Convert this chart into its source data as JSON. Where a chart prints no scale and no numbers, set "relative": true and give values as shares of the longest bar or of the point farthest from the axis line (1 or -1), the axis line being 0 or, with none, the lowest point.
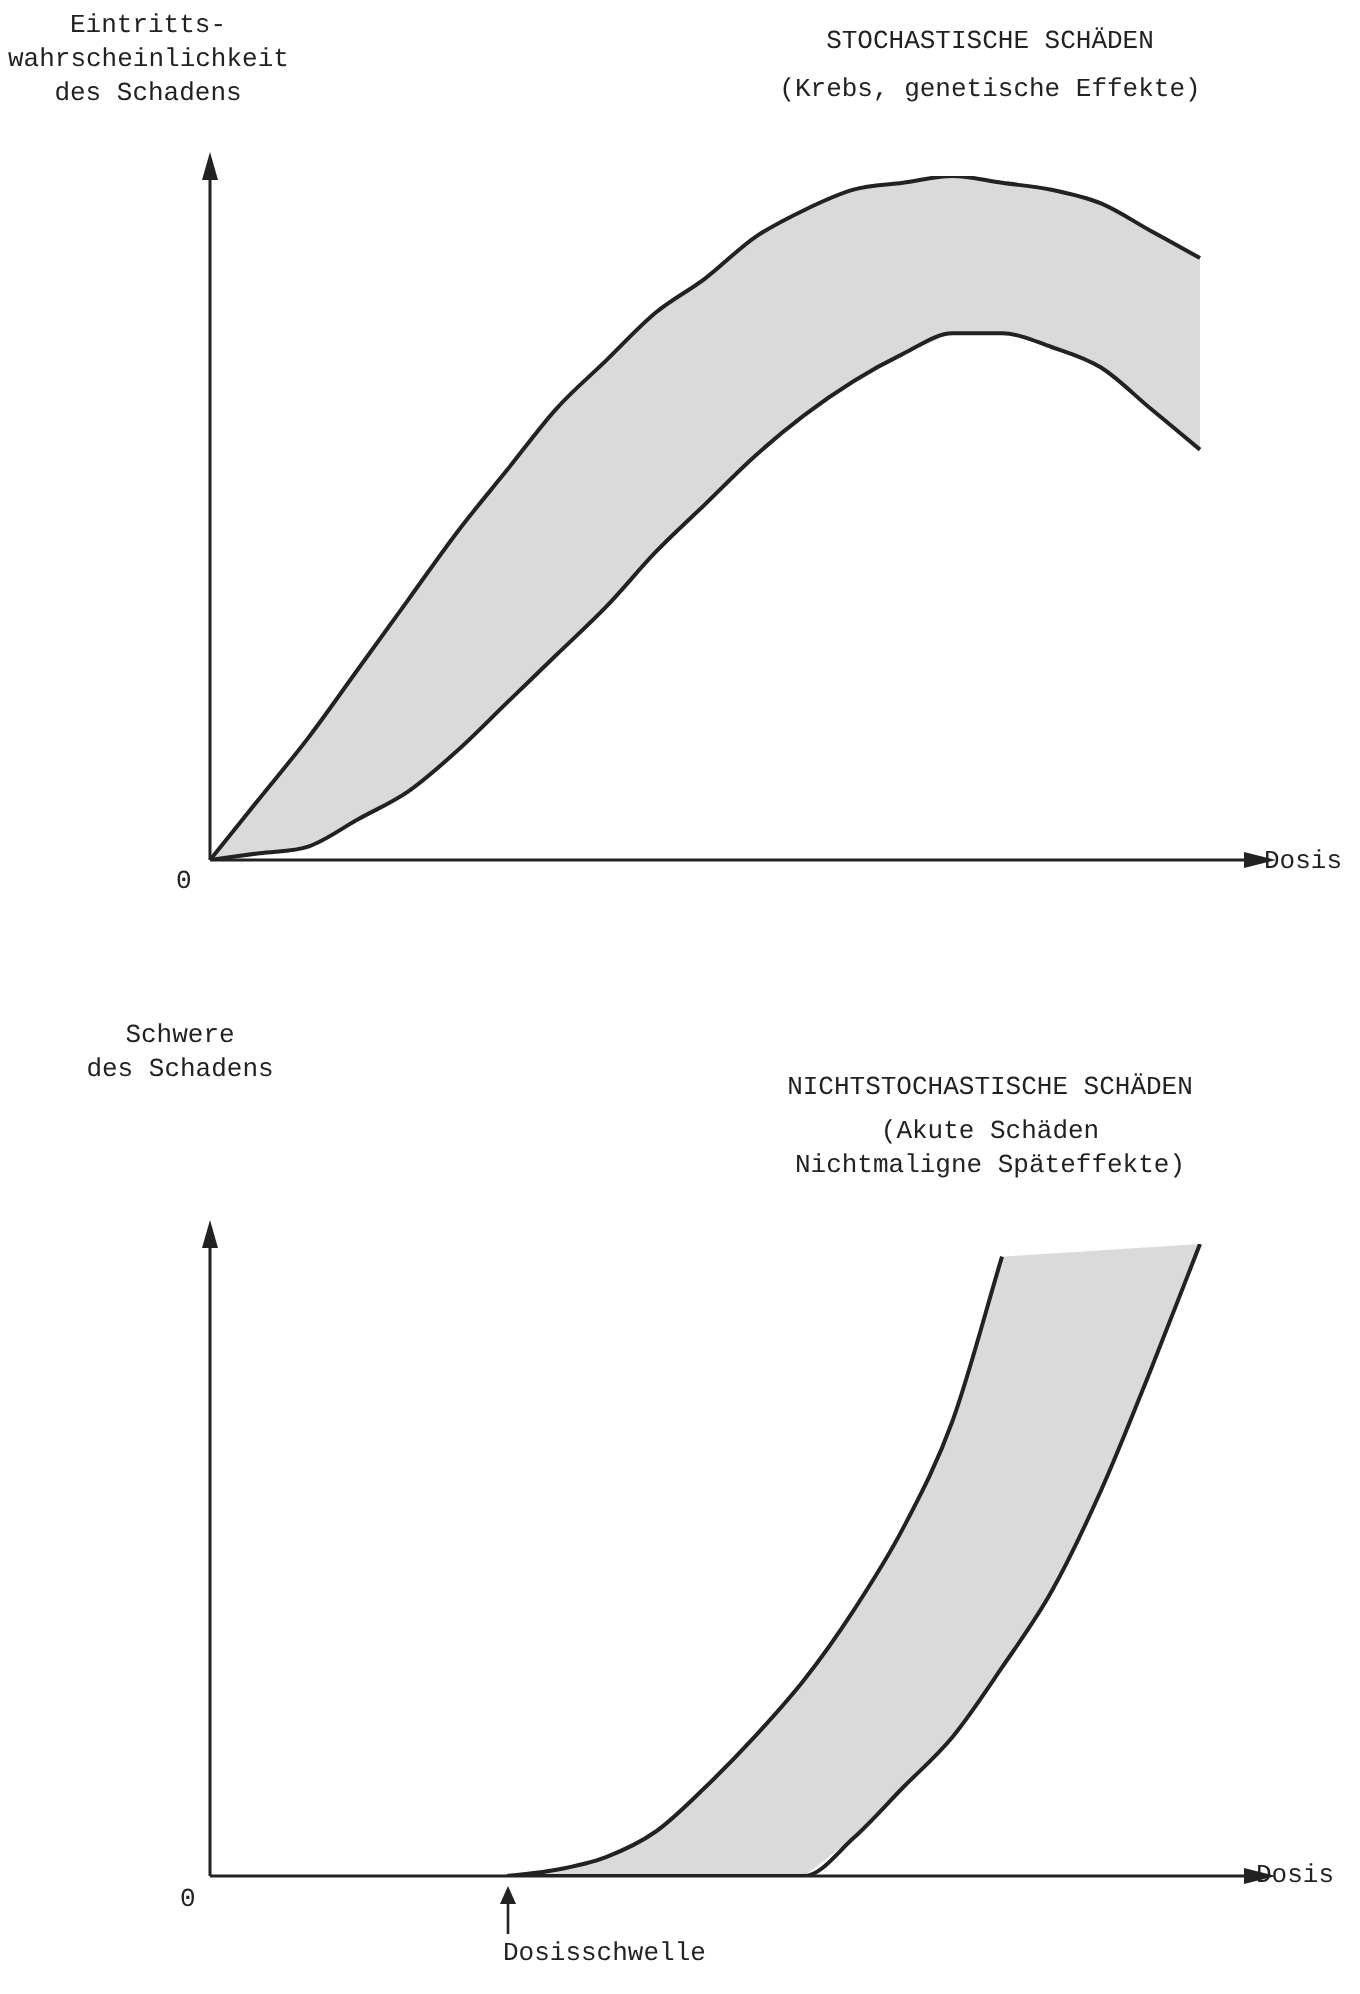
{
  "chart_data": [
    {
      "type": "line",
      "relative": true,
      "title": "STOCHASTISCHE SCHÄDEN",
      "subtitle": "(Krebs, genetische Effekte)",
      "ylabel": "Eintritts-\nwahrscheinlichkeit\ndes Schadens",
      "xlabel": "Dosis",
      "annotations": [
        "0"
      ],
      "categories": [
        null,
        null,
        null,
        null,
        null,
        null,
        null,
        null,
        null,
        null,
        null,
        null,
        null,
        null,
        null,
        null,
        null,
        null,
        null,
        null,
        null
      ],
      "marker": "none",
      "line_style": "solid",
      "series": [
        {
          "color": "#222222",
          "values": [
            0,
            0.09,
            0.18,
            0.28,
            0.38,
            0.48,
            0.57,
            0.66,
            0.73,
            0.8,
            0.85,
            0.91,
            0.95,
            0.98,
            0.99,
            1,
            0.99,
            0.98,
            0.96,
            0.92,
            0.88
          ]
        },
        {
          "color": "#222222",
          "values": [
            0,
            0.01,
            0.02,
            0.06,
            0.1,
            0.16,
            0.23,
            0.3,
            0.37,
            0.45,
            0.52,
            0.59,
            0.65,
            0.7,
            0.74,
            0.77,
            0.77,
            0.75,
            0.72,
            0.66,
            0.6
          ]
        }
      ]
    },
    {
      "type": "line",
      "relative": true,
      "title": "NICHTSTOCHASTISCHE SCHÄDEN",
      "subtitle": "(Akute Schäden\nNichtmaligne Späteffekte)",
      "ylabel": "Schwere\ndes Schadens",
      "xlabel": "Dosis",
      "annotations": [
        "0",
        "Dosisschwelle"
      ],
      "categories": [
        null,
        null,
        null,
        null,
        null,
        null,
        null,
        null,
        null,
        null,
        null,
        null,
        null,
        null,
        null,
        null,
        null,
        null,
        null,
        null,
        null
      ],
      "marker": "none",
      "line_style": "solid",
      "series": [
        {
          "color": "#222222",
          "values": [
            null,
            null,
            null,
            null,
            null,
            null,
            0,
            0.01,
            0.03,
            0.07,
            0.14,
            0.22,
            0.31,
            0.42,
            0.55,
            0.72,
            0.98,
            null,
            null,
            null,
            null
          ]
        },
        {
          "color": "#222222",
          "values": [
            null,
            null,
            null,
            null,
            null,
            null,
            0,
            0,
            0,
            0,
            0,
            0,
            0,
            0.06,
            0.14,
            0.22,
            0.33,
            0.45,
            0.61,
            0.8,
            1
          ]
        }
      ]
    }
  ]
}
